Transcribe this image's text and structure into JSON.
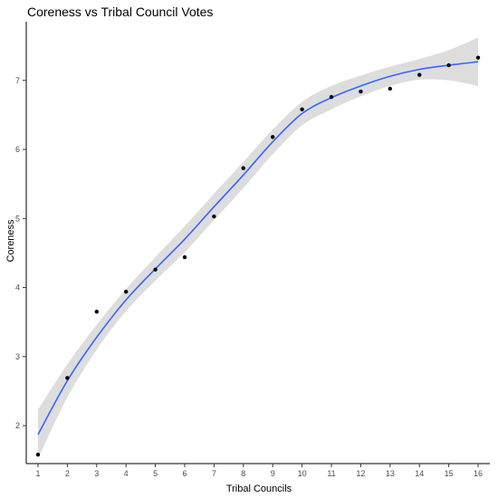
{
  "chart_data": {
    "type": "scatter",
    "title": "Coreness vs Tribal Council Votes",
    "xlabel": "Tribal Councils",
    "ylabel": "Coreness",
    "xlim": [
      0.6,
      16.4
    ],
    "ylim": [
      1.45,
      7.85
    ],
    "x_ticks": [
      1,
      2,
      3,
      4,
      5,
      6,
      7,
      8,
      9,
      10,
      11,
      12,
      13,
      14,
      15,
      16
    ],
    "y_ticks": [
      2,
      3,
      4,
      5,
      6,
      7
    ],
    "grid": false,
    "legend": "none",
    "points": {
      "x": [
        1,
        2,
        3,
        4,
        5,
        6,
        7,
        8,
        9,
        10,
        11,
        12,
        13,
        14,
        15,
        16
      ],
      "y": [
        1.58,
        2.69,
        3.65,
        3.94,
        4.26,
        4.44,
        5.03,
        5.73,
        6.18,
        6.58,
        6.76,
        6.84,
        6.88,
        7.08,
        7.22,
        7.33
      ],
      "color": "#000000"
    },
    "smooth": {
      "x": [
        1,
        2,
        3,
        4,
        5,
        6,
        7,
        8,
        9,
        10,
        11,
        12,
        13,
        14,
        15,
        16
      ],
      "y": [
        1.87,
        2.65,
        3.28,
        3.82,
        4.27,
        4.7,
        5.17,
        5.63,
        6.11,
        6.52,
        6.75,
        6.92,
        7.06,
        7.16,
        7.22,
        7.27
      ],
      "lower": [
        1.52,
        2.41,
        3.1,
        3.66,
        4.1,
        4.51,
        4.98,
        5.44,
        5.93,
        6.35,
        6.58,
        6.77,
        6.92,
        7.01,
        7.0,
        6.92
      ],
      "upper": [
        2.23,
        2.89,
        3.46,
        3.98,
        4.44,
        4.89,
        5.36,
        5.82,
        6.29,
        6.69,
        6.92,
        7.07,
        7.2,
        7.31,
        7.44,
        7.62
      ],
      "line_color": "#3366ff",
      "band_color": "#d9d9d9"
    }
  }
}
